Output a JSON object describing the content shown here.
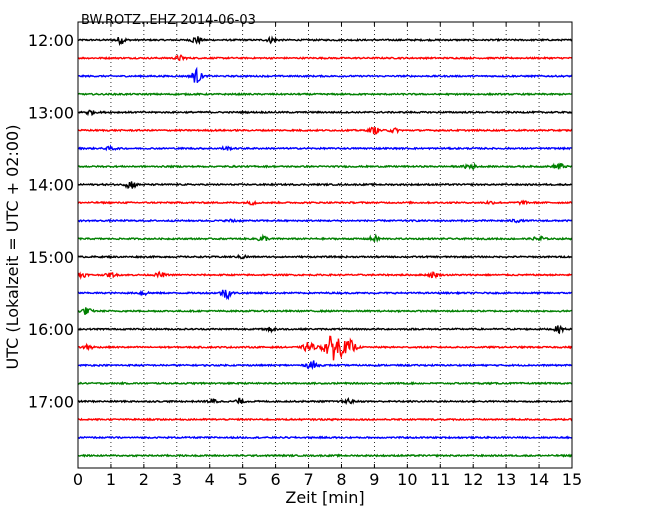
{
  "chart_data": {
    "type": "line",
    "title": "BW.ROTZ..EHZ 2014-06-03",
    "xlabel": "Zeit  [min]",
    "ylabel": "UTC (Lokalzeit = UTC + 02:00)",
    "xlim": [
      0,
      15
    ],
    "x_ticks": [
      "0",
      "1",
      "2",
      "3",
      "4",
      "5",
      "6",
      "7",
      "8",
      "9",
      "10",
      "11",
      "12",
      "13",
      "14",
      "15"
    ],
    "grid": "vertical dotted",
    "row_minutes": 15,
    "colors": [
      "#000000",
      "#ff0000",
      "#0000ff",
      "#008000"
    ],
    "y_ticks": [
      {
        "label": "12:00",
        "row": 0
      },
      {
        "label": "13:00",
        "row": 4
      },
      {
        "label": "14:00",
        "row": 8
      },
      {
        "label": "15:00",
        "row": 12
      },
      {
        "label": "16:00",
        "row": 16
      },
      {
        "label": "17:00",
        "row": 20
      }
    ],
    "series": [
      {
        "start": "12:00",
        "events": [
          {
            "x": 1.3,
            "amp": 0.22
          },
          {
            "x": 3.6,
            "amp": 0.25
          },
          {
            "x": 5.9,
            "amp": 0.18
          }
        ]
      },
      {
        "start": "12:15",
        "events": [
          {
            "x": 3.1,
            "amp": 0.15
          }
        ]
      },
      {
        "start": "12:30",
        "events": [
          {
            "x": 3.6,
            "amp": 0.45
          }
        ]
      },
      {
        "start": "12:45",
        "events": []
      },
      {
        "start": "13:00",
        "events": [
          {
            "x": 0.35,
            "amp": 0.15
          }
        ]
      },
      {
        "start": "13:15",
        "events": [
          {
            "x": 9.0,
            "amp": 0.2
          },
          {
            "x": 9.6,
            "amp": 0.12
          }
        ]
      },
      {
        "start": "13:30",
        "events": [
          {
            "x": 1.0,
            "amp": 0.1
          },
          {
            "x": 4.5,
            "amp": 0.1
          }
        ]
      },
      {
        "start": "13:45",
        "events": [
          {
            "x": 11.9,
            "amp": 0.22
          },
          {
            "x": 14.6,
            "amp": 0.22
          }
        ]
      },
      {
        "start": "14:00",
        "events": [
          {
            "x": 1.6,
            "amp": 0.28
          }
        ]
      },
      {
        "start": "14:15",
        "events": [
          {
            "x": 5.3,
            "amp": 0.1
          },
          {
            "x": 12.5,
            "amp": 0.08
          },
          {
            "x": 13.5,
            "amp": 0.08
          }
        ]
      },
      {
        "start": "14:30",
        "events": [
          {
            "x": 4.7,
            "amp": 0.08
          },
          {
            "x": 13.3,
            "amp": 0.08
          }
        ]
      },
      {
        "start": "14:45",
        "events": [
          {
            "x": 5.6,
            "amp": 0.2
          },
          {
            "x": 9.0,
            "amp": 0.18
          },
          {
            "x": 14.0,
            "amp": 0.2
          }
        ]
      },
      {
        "start": "15:00",
        "events": [
          {
            "x": 5.0,
            "amp": 0.1
          }
        ]
      },
      {
        "start": "15:15",
        "events": [
          {
            "x": 0.1,
            "amp": 0.15
          },
          {
            "x": 1.0,
            "amp": 0.12
          },
          {
            "x": 2.5,
            "amp": 0.15
          },
          {
            "x": 10.8,
            "amp": 0.15
          }
        ]
      },
      {
        "start": "15:30",
        "events": [
          {
            "x": 2.0,
            "amp": 0.12
          },
          {
            "x": 4.5,
            "amp": 0.35
          }
        ]
      },
      {
        "start": "15:45",
        "events": [
          {
            "x": 0.25,
            "amp": 0.22
          }
        ]
      },
      {
        "start": "16:00",
        "events": [
          {
            "x": 5.9,
            "amp": 0.15
          },
          {
            "x": 14.6,
            "amp": 0.2
          }
        ]
      },
      {
        "start": "16:15",
        "events": [
          {
            "x": 0.3,
            "amp": 0.15
          },
          {
            "x": 7.0,
            "amp": 0.35
          },
          {
            "x": 7.8,
            "amp": 0.8
          },
          {
            "x": 8.3,
            "amp": 0.35
          }
        ]
      },
      {
        "start": "16:30",
        "events": [
          {
            "x": 7.1,
            "amp": 0.3
          }
        ]
      },
      {
        "start": "16:45",
        "events": []
      },
      {
        "start": "17:00",
        "events": [
          {
            "x": 4.1,
            "amp": 0.15
          },
          {
            "x": 4.9,
            "amp": 0.15
          },
          {
            "x": 8.2,
            "amp": 0.15
          }
        ]
      },
      {
        "start": "17:15",
        "events": []
      },
      {
        "start": "17:30",
        "events": []
      },
      {
        "start": "17:45",
        "events": []
      }
    ]
  }
}
